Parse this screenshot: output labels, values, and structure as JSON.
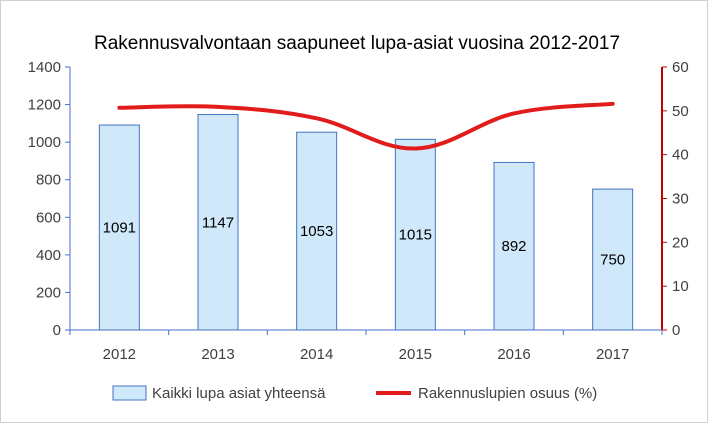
{
  "chart_data": {
    "type": "bar",
    "title": "Rakennusvalvontaan saapuneet lupa-asiat vuosina 2012-2017",
    "categories": [
      "2012",
      "2013",
      "2014",
      "2015",
      "2016",
      "2017"
    ],
    "series": [
      {
        "name": "Kaikki lupa asiat yhteensä",
        "type": "bar",
        "axis": "left",
        "values": [
          1091,
          1147,
          1053,
          1015,
          892,
          750
        ],
        "data_labels": [
          "1091",
          "1147",
          "1053",
          "1015",
          "892",
          "750"
        ],
        "color": "#cfe8fa",
        "border_color": "#4472c4"
      },
      {
        "name": "Rakennuslupien osuus (%)",
        "type": "line",
        "axis": "right",
        "values": [
          50.7,
          50.9,
          48.3,
          41.4,
          49.4,
          51.6
        ],
        "color": "#e21b1b"
      }
    ],
    "y_left": {
      "min": 0,
      "max": 1400,
      "ticks": [
        "0",
        "200",
        "400",
        "600",
        "800",
        "1000",
        "1200",
        "1400"
      ],
      "axis_color": "#4472c4"
    },
    "y_right": {
      "min": 0,
      "max": 60,
      "ticks": [
        "0",
        "10",
        "20",
        "30",
        "40",
        "50",
        "60"
      ],
      "axis_color": "#c00000"
    },
    "grid": false,
    "legend_position": "bottom"
  }
}
